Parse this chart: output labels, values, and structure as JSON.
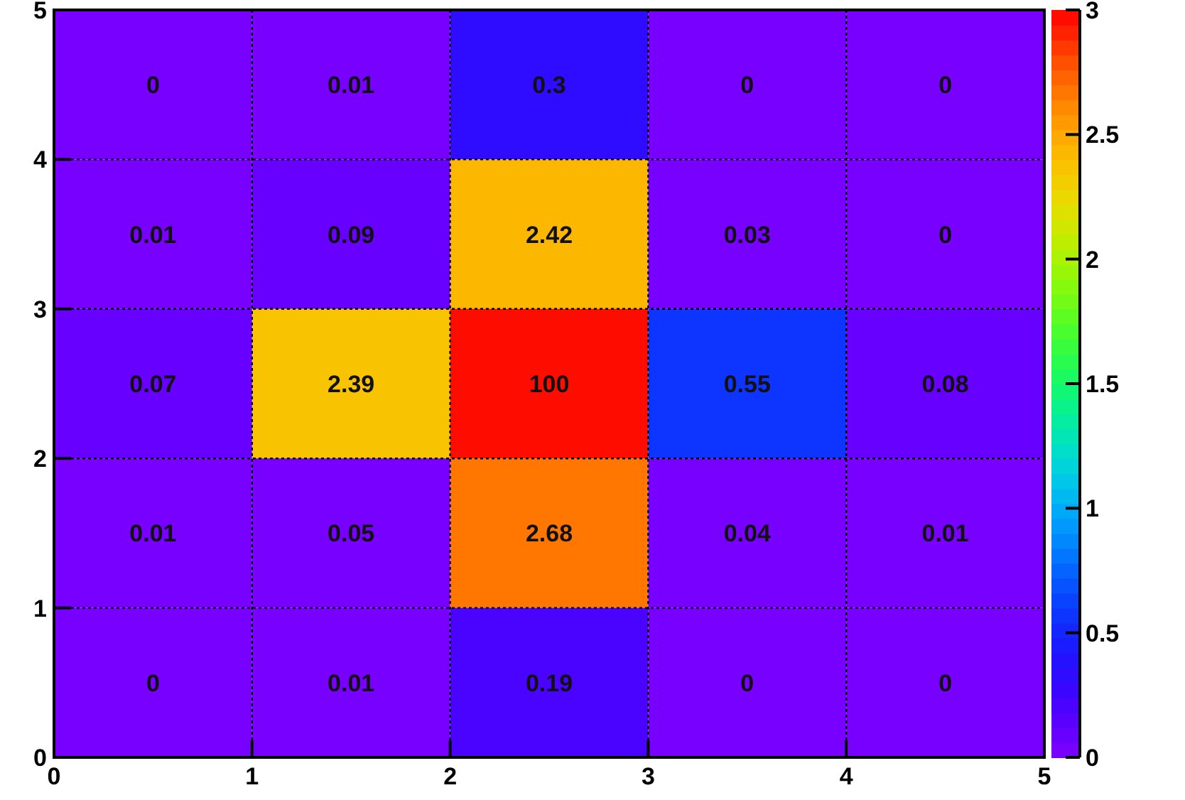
{
  "chart_data": {
    "type": "heatmap",
    "x": [
      0.5,
      1.5,
      2.5,
      3.5,
      4.5
    ],
    "xlim": [
      0,
      5
    ],
    "xticks": [
      0,
      1,
      2,
      3,
      4,
      5
    ],
    "ylim": [
      0,
      5
    ],
    "yticks": [
      0,
      1,
      2,
      3,
      4,
      5
    ],
    "cells": [
      [
        0,
        0.01,
        0.3,
        0,
        0
      ],
      [
        0.01,
        0.09,
        2.42,
        0.03,
        0
      ],
      [
        0.07,
        2.39,
        100,
        0.55,
        0.08
      ],
      [
        0.01,
        0.05,
        2.68,
        0.04,
        0.01
      ],
      [
        0,
        0.01,
        0.19,
        0,
        0
      ]
    ],
    "clim": [
      0,
      3
    ],
    "cticks": [
      0,
      0.5,
      1,
      1.5,
      2,
      2.5,
      3
    ],
    "data_labels": true,
    "grid": true
  }
}
